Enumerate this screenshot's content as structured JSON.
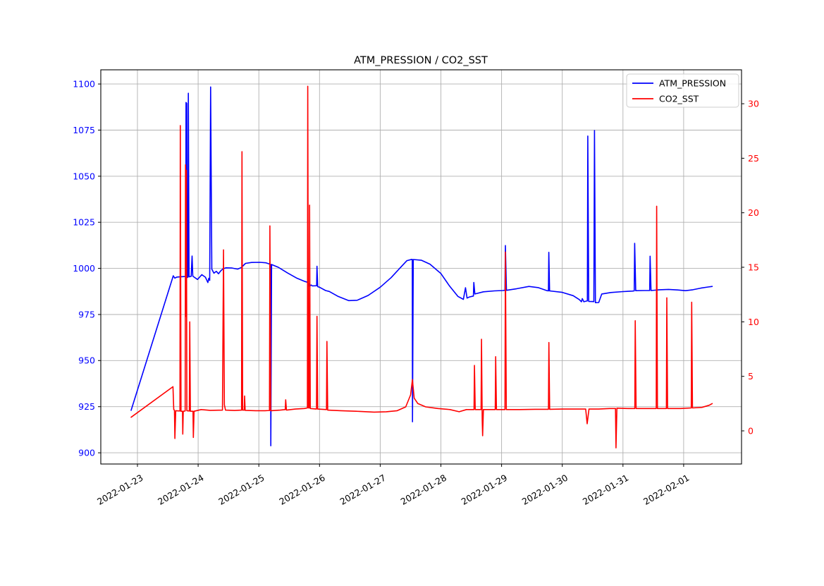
{
  "title": "ATM_PRESSION / CO2_SST",
  "legend": {
    "position": "upper right",
    "items": [
      {
        "label": "ATM_PRESSION",
        "color": "#0000ff"
      },
      {
        "label": "CO2_SST",
        "color": "#ff0000"
      }
    ]
  },
  "chart_data": {
    "type": "line",
    "title": "ATM_PRESSION / CO2_SST",
    "grid": true,
    "legend_position": "upper right",
    "x_axis": {
      "unit": "days since 2022-01-23 00:00",
      "lim": [
        -0.604,
        9.953
      ],
      "tick_positions": [
        0,
        1,
        2,
        3,
        4,
        5,
        6,
        7,
        8,
        9
      ],
      "tick_labels": [
        "2022-01-23",
        "2022-01-24",
        "2022-01-25",
        "2022-01-26",
        "2022-01-27",
        "2022-01-28",
        "2022-01-29",
        "2022-01-30",
        "2022-01-31",
        "2022-02-01"
      ],
      "tick_rotation_deg": 30
    },
    "left_axis": {
      "series": "ATM_PRESSION",
      "color": "#0000ff",
      "lim": [
        893.9,
        1107.7
      ],
      "ticks": [
        900,
        925,
        950,
        975,
        1000,
        1025,
        1050,
        1075,
        1100
      ]
    },
    "right_axis": {
      "series": "CO2_SST",
      "color": "#ff0000",
      "lim": [
        -3.04,
        33.11
      ],
      "ticks": [
        0,
        5,
        10,
        15,
        20,
        25,
        30
      ]
    },
    "series": [
      {
        "name": "ATM_PRESSION",
        "color": "#0000ff",
        "axis": "left",
        "points": [
          [
            -0.105,
            923.0
          ],
          [
            0.59,
            996.0
          ],
          [
            0.615,
            994.7
          ],
          [
            0.65,
            995.3
          ],
          [
            0.72,
            995.5
          ],
          [
            0.795,
            995.6
          ],
          [
            0.8,
            1090.0
          ],
          [
            0.812,
            1089.5
          ],
          [
            0.818,
            995.0
          ],
          [
            0.83,
            995.2
          ],
          [
            0.838,
            1095.0
          ],
          [
            0.85,
            995.4
          ],
          [
            0.885,
            995.7
          ],
          [
            0.9,
            1006.7
          ],
          [
            0.912,
            995.8
          ],
          [
            0.99,
            994.0
          ],
          [
            1.06,
            996.6
          ],
          [
            1.12,
            995.2
          ],
          [
            1.16,
            992.3
          ],
          [
            1.175,
            994.6
          ],
          [
            1.19,
            993.5
          ],
          [
            1.205,
            1098.4
          ],
          [
            1.225,
            999.6
          ],
          [
            1.26,
            997.4
          ],
          [
            1.3,
            998.4
          ],
          [
            1.335,
            997.1
          ],
          [
            1.37,
            998.6
          ],
          [
            1.41,
            999.8
          ],
          [
            1.46,
            1000.3
          ],
          [
            1.56,
            1000.2
          ],
          [
            1.65,
            999.6
          ],
          [
            1.71,
            1000.4
          ],
          [
            1.78,
            1002.7
          ],
          [
            1.88,
            1003.2
          ],
          [
            2.02,
            1003.3
          ],
          [
            2.12,
            1003.0
          ],
          [
            2.17,
            1002.4
          ],
          [
            2.193,
            1002.2
          ],
          [
            2.197,
            903.8
          ],
          [
            2.21,
            1002.1
          ],
          [
            2.32,
            1000.6
          ],
          [
            2.47,
            997.6
          ],
          [
            2.62,
            994.8
          ],
          [
            2.76,
            992.9
          ],
          [
            2.81,
            992.4
          ],
          [
            2.835,
            990.2
          ],
          [
            2.86,
            991.0
          ],
          [
            2.88,
            990.5
          ],
          [
            2.952,
            990.6
          ],
          [
            2.958,
            1001.2
          ],
          [
            2.97,
            990.1
          ],
          [
            3.0,
            989.8
          ],
          [
            3.1,
            988.0
          ],
          [
            3.16,
            987.5
          ],
          [
            3.3,
            984.9
          ],
          [
            3.48,
            982.5
          ],
          [
            3.62,
            982.7
          ],
          [
            3.8,
            985.3
          ],
          [
            4.0,
            989.8
          ],
          [
            4.18,
            995.0
          ],
          [
            4.32,
            1000.0
          ],
          [
            4.44,
            1004.2
          ],
          [
            4.52,
            1004.9
          ],
          [
            4.528,
            1004.8
          ],
          [
            4.532,
            916.8
          ],
          [
            4.545,
            1004.8
          ],
          [
            4.68,
            1004.4
          ],
          [
            4.82,
            1002.3
          ],
          [
            5.0,
            997.2
          ],
          [
            5.14,
            990.5
          ],
          [
            5.28,
            984.8
          ],
          [
            5.37,
            983.2
          ],
          [
            5.405,
            989.5
          ],
          [
            5.43,
            983.9
          ],
          [
            5.47,
            984.5
          ],
          [
            5.535,
            985.0
          ],
          [
            5.542,
            992.4
          ],
          [
            5.56,
            986.1
          ],
          [
            5.7,
            987.3
          ],
          [
            5.88,
            987.8
          ],
          [
            6.02,
            988.0
          ],
          [
            6.055,
            988.1
          ],
          [
            6.062,
            1012.4
          ],
          [
            6.08,
            988.1
          ],
          [
            6.25,
            989.0
          ],
          [
            6.45,
            990.2
          ],
          [
            6.6,
            989.6
          ],
          [
            6.75,
            987.9
          ],
          [
            6.772,
            987.8
          ],
          [
            6.778,
            1008.7
          ],
          [
            6.79,
            987.8
          ],
          [
            7.0,
            987.0
          ],
          [
            7.18,
            985.2
          ],
          [
            7.28,
            983.1
          ],
          [
            7.315,
            981.9
          ],
          [
            7.33,
            983.6
          ],
          [
            7.355,
            981.9
          ],
          [
            7.4,
            982.3
          ],
          [
            7.413,
            982.4
          ],
          [
            7.42,
            1071.8
          ],
          [
            7.435,
            982.1
          ],
          [
            7.52,
            982.0
          ],
          [
            7.53,
            1074.8
          ],
          [
            7.545,
            981.4
          ],
          [
            7.6,
            981.5
          ],
          [
            7.65,
            986.1
          ],
          [
            7.8,
            986.9
          ],
          [
            8.0,
            987.4
          ],
          [
            8.15,
            987.7
          ],
          [
            8.185,
            987.8
          ],
          [
            8.192,
            1013.6
          ],
          [
            8.21,
            987.9
          ],
          [
            8.35,
            988.0
          ],
          [
            8.44,
            988.0
          ],
          [
            8.447,
            1006.6
          ],
          [
            8.462,
            988.0
          ],
          [
            8.6,
            988.4
          ],
          [
            8.75,
            988.6
          ],
          [
            8.9,
            988.3
          ],
          [
            9.03,
            987.9
          ],
          [
            9.15,
            988.4
          ],
          [
            9.28,
            989.3
          ],
          [
            9.4,
            989.9
          ],
          [
            9.47,
            990.2
          ]
        ]
      },
      {
        "name": "CO2_SST",
        "color": "#ff0000",
        "axis": "right",
        "points": [
          [
            -0.105,
            1.25
          ],
          [
            0.585,
            4.05
          ],
          [
            0.598,
            1.95
          ],
          [
            0.61,
            1.9
          ],
          [
            0.617,
            -0.7
          ],
          [
            0.63,
            1.85
          ],
          [
            0.7,
            1.82
          ],
          [
            0.706,
            28.0
          ],
          [
            0.718,
            1.8
          ],
          [
            0.742,
            1.8
          ],
          [
            0.747,
            -0.3
          ],
          [
            0.755,
            1.8
          ],
          [
            0.786,
            1.82
          ],
          [
            0.792,
            24.4
          ],
          [
            0.8,
            10.5
          ],
          [
            0.806,
            23.9
          ],
          [
            0.814,
            1.85
          ],
          [
            0.855,
            1.82
          ],
          [
            0.862,
            10.0
          ],
          [
            0.872,
            1.8
          ],
          [
            0.915,
            1.8
          ],
          [
            0.921,
            -0.6
          ],
          [
            0.932,
            1.8
          ],
          [
            1.05,
            1.95
          ],
          [
            1.2,
            1.88
          ],
          [
            1.4,
            1.9
          ],
          [
            1.418,
            16.6
          ],
          [
            1.432,
            2.4
          ],
          [
            1.45,
            1.9
          ],
          [
            1.6,
            1.87
          ],
          [
            1.715,
            1.9
          ],
          [
            1.722,
            25.6
          ],
          [
            1.733,
            1.9
          ],
          [
            1.76,
            1.9
          ],
          [
            1.765,
            3.2
          ],
          [
            1.775,
            1.88
          ],
          [
            1.95,
            1.85
          ],
          [
            2.1,
            1.85
          ],
          [
            2.175,
            1.87
          ],
          [
            2.182,
            18.8
          ],
          [
            2.195,
            1.85
          ],
          [
            2.35,
            1.9
          ],
          [
            2.435,
            1.95
          ],
          [
            2.442,
            2.85
          ],
          [
            2.455,
            1.9
          ],
          [
            2.6,
            2.0
          ],
          [
            2.75,
            2.05
          ],
          [
            2.8,
            2.1
          ],
          [
            2.806,
            31.6
          ],
          [
            2.818,
            2.1
          ],
          [
            2.83,
            2.1
          ],
          [
            2.836,
            20.7
          ],
          [
            2.848,
            2.05
          ],
          [
            2.95,
            2.0
          ],
          [
            2.958,
            10.5
          ],
          [
            2.97,
            2.0
          ],
          [
            3.115,
            1.95
          ],
          [
            3.122,
            8.2
          ],
          [
            3.135,
            1.9
          ],
          [
            3.35,
            1.85
          ],
          [
            3.6,
            1.8
          ],
          [
            3.9,
            1.72
          ],
          [
            4.1,
            1.75
          ],
          [
            4.28,
            1.85
          ],
          [
            4.42,
            2.2
          ],
          [
            4.5,
            3.3
          ],
          [
            4.53,
            4.7
          ],
          [
            4.56,
            3.0
          ],
          [
            4.62,
            2.5
          ],
          [
            4.75,
            2.2
          ],
          [
            4.95,
            2.05
          ],
          [
            5.15,
            1.95
          ],
          [
            5.3,
            1.75
          ],
          [
            5.42,
            1.95
          ],
          [
            5.545,
            1.95
          ],
          [
            5.552,
            6.0
          ],
          [
            5.565,
            1.95
          ],
          [
            5.662,
            1.95
          ],
          [
            5.669,
            8.4
          ],
          [
            5.68,
            1.0
          ],
          [
            5.687,
            -0.45
          ],
          [
            5.7,
            1.95
          ],
          [
            5.895,
            1.95
          ],
          [
            5.902,
            6.8
          ],
          [
            5.915,
            1.95
          ],
          [
            6.055,
            1.95
          ],
          [
            6.062,
            16.4
          ],
          [
            6.078,
            1.95
          ],
          [
            6.3,
            1.95
          ],
          [
            6.55,
            1.98
          ],
          [
            6.772,
            1.98
          ],
          [
            6.779,
            8.1
          ],
          [
            6.792,
            1.98
          ],
          [
            7.0,
            2.0
          ],
          [
            7.3,
            2.0
          ],
          [
            7.385,
            2.0
          ],
          [
            7.41,
            0.65
          ],
          [
            7.44,
            2.0
          ],
          [
            7.6,
            2.0
          ],
          [
            7.78,
            2.05
          ],
          [
            7.877,
            2.05
          ],
          [
            7.885,
            -1.56
          ],
          [
            7.9,
            2.08
          ],
          [
            8.08,
            2.05
          ],
          [
            8.195,
            2.05
          ],
          [
            8.202,
            10.1
          ],
          [
            8.215,
            2.05
          ],
          [
            8.4,
            2.05
          ],
          [
            8.548,
            2.05
          ],
          [
            8.555,
            20.6
          ],
          [
            8.568,
            2.05
          ],
          [
            8.715,
            2.05
          ],
          [
            8.722,
            12.2
          ],
          [
            8.735,
            2.05
          ],
          [
            8.95,
            2.05
          ],
          [
            9.125,
            2.1
          ],
          [
            9.132,
            11.8
          ],
          [
            9.145,
            2.1
          ],
          [
            9.3,
            2.15
          ],
          [
            9.42,
            2.35
          ],
          [
            9.47,
            2.5
          ]
        ]
      }
    ]
  }
}
